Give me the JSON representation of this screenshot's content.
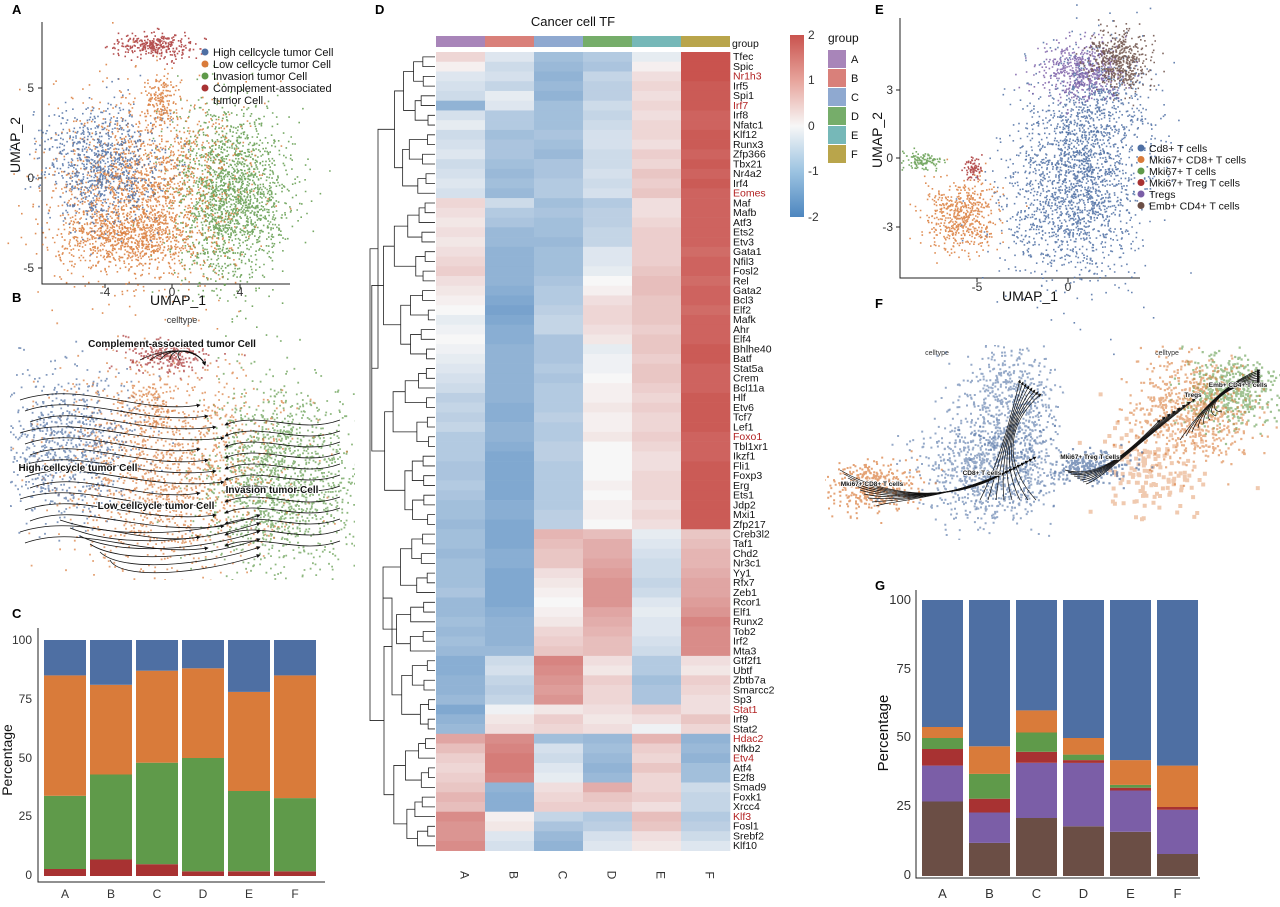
{
  "panels": {
    "A": {
      "label": "A",
      "xlabel": "UMAP_1",
      "ylabel": "UMAP_2",
      "xticks": [
        "-4",
        "0",
        "4"
      ],
      "yticks": [
        "5",
        "0",
        "-5"
      ],
      "legend": [
        {
          "name": "High cellcycle tumor Cell",
          "color": "#4e6fa3"
        },
        {
          "name": "Low cellcycle tumor Cell",
          "color": "#d97b3a"
        },
        {
          "name": "Invasion tumor Cell",
          "color": "#5f9a4a"
        },
        {
          "name": "Complement-associated",
          "name2": "tumor Cell",
          "color": "#a83232"
        }
      ]
    },
    "B": {
      "label": "B",
      "title": "celltype",
      "annotations": [
        "Complement-associated tumor Cell",
        "High cellcycle tumor Cell",
        "Invasion tumor Cell",
        "Low cellcycle tumor Cell"
      ]
    },
    "C": {
      "label": "C",
      "ylabel": "Percentage",
      "yticks": [
        "100",
        "75",
        "50",
        "25",
        "0"
      ]
    },
    "D": {
      "label": "D",
      "title": "Cancer cell TF",
      "group_label": "group",
      "legend_title": "group",
      "scale_ticks": [
        "2",
        "1",
        "0",
        "-1",
        "-2"
      ],
      "highlighted_color": "#b22222"
    },
    "E": {
      "label": "E",
      "xlabel": "UMAP_1",
      "ylabel": "UMAP_2",
      "xticks": [
        "-5",
        "0"
      ],
      "yticks": [
        "3",
        "0",
        "-3"
      ],
      "legend": [
        {
          "name": "Cd8+ T cells",
          "color": "#4e6fa3"
        },
        {
          "name": "Mki67+ CD8+ T cells",
          "color": "#d97b3a"
        },
        {
          "name": "Mki67+ T cells",
          "color": "#5f9a4a"
        },
        {
          "name": "Mki67+ Treg T cells",
          "color": "#a83232"
        },
        {
          "name": "Tregs",
          "color": "#7b5ea7"
        },
        {
          "name": "Emb+ CD4+ T cells",
          "color": "#6b4e45"
        }
      ]
    },
    "F": {
      "label": "F",
      "left_title": "celltype",
      "right_title": "celltype",
      "left_annotations": [
        "Mki67+ CD8+ T cells",
        "CD8+ T cells"
      ],
      "right_annotations": [
        "Tregs",
        "Emb+ CD4+ T cells",
        "Mki67+ Treg T cells"
      ]
    },
    "G": {
      "label": "G",
      "ylabel": "Percentage",
      "yticks": [
        "100",
        "75",
        "50",
        "25",
        "0"
      ]
    }
  },
  "chart_data": [
    {
      "id": "C",
      "type": "bar",
      "stacked": true,
      "categories": [
        "A",
        "B",
        "C",
        "D",
        "E",
        "F"
      ],
      "ylim": [
        0,
        100
      ],
      "ylabel": "Percentage",
      "series": [
        {
          "color": "#a83232",
          "values": [
            3,
            7,
            5,
            2,
            2,
            2
          ]
        },
        {
          "color": "#5f9a4a",
          "values": [
            31,
            36,
            43,
            48,
            34,
            31
          ]
        },
        {
          "color": "#d97b3a",
          "values": [
            51,
            38,
            39,
            38,
            42,
            52
          ]
        },
        {
          "color": "#4e6fa3",
          "values": [
            15,
            19,
            13,
            12,
            22,
            15
          ]
        }
      ]
    },
    {
      "id": "G",
      "type": "bar",
      "stacked": true,
      "categories": [
        "A",
        "B",
        "C",
        "D",
        "E",
        "F"
      ],
      "ylim": [
        0,
        100
      ],
      "ylabel": "Percentage",
      "series": [
        {
          "color": "#6b4e45",
          "values": [
            27,
            12,
            21,
            18,
            16,
            8
          ]
        },
        {
          "color": "#7b5ea7",
          "values": [
            13,
            11,
            20,
            23,
            15,
            16
          ]
        },
        {
          "color": "#a83232",
          "values": [
            6,
            5,
            4,
            1,
            1,
            1
          ]
        },
        {
          "color": "#5f9a4a",
          "values": [
            4,
            9,
            7,
            2,
            1,
            0
          ]
        },
        {
          "color": "#d97b3a",
          "values": [
            4,
            10,
            8,
            6,
            9,
            15
          ]
        },
        {
          "color": "#4e6fa3",
          "values": [
            46,
            53,
            40,
            50,
            58,
            60
          ]
        }
      ]
    },
    {
      "id": "D",
      "type": "heatmap",
      "title": "Cancer cell TF",
      "columns": [
        "A",
        "B",
        "C",
        "D",
        "E",
        "F"
      ],
      "group_colors": [
        "#a885b9",
        "#d9807a",
        "#8fa9d0",
        "#76ad6a",
        "#76b8b8",
        "#b9a54b"
      ],
      "range": [
        -2,
        2
      ],
      "rows": [
        "Tfec",
        "Spic",
        "Nr1h3",
        "Irf5",
        "Spi1",
        "Irf7",
        "Irf8",
        "Nfatc1",
        "Klf12",
        "Runx3",
        "Zfp366",
        "Tbx21",
        "Nr4a2",
        "Irf4",
        "Eomes",
        "Maf",
        "Mafb",
        "Atf3",
        "Ets2",
        "Etv3",
        "Gata1",
        "Nfil3",
        "Fosl2",
        "Rel",
        "Gata2",
        "Bcl3",
        "Elf2",
        "Mafk",
        "Ahr",
        "Elf4",
        "Bhlhe40",
        "Batf",
        "Stat5a",
        "Crem",
        "Bcl11a",
        "Hlf",
        "Etv6",
        "Tcf7",
        "Lef1",
        "Foxo1",
        "Tbl1xr1",
        "Ikzf1",
        "Fli1",
        "Foxp3",
        "Erg",
        "Ets1",
        "Jdp2",
        "Mxi1",
        "Zfp217",
        "Creb3l2",
        "Taf1",
        "Chd2",
        "Nr3c1",
        "Yy1",
        "Rfx7",
        "Zeb1",
        "Rcor1",
        "Elf1",
        "Runx2",
        "Tob2",
        "Irf2",
        "Mta3",
        "Gtf2f1",
        "Ubtf",
        "Zbtb7a",
        "Smarcc2",
        "Sp3",
        "Stat1",
        "Irf9",
        "Stat2",
        "Hdac2",
        "Nfkb2",
        "Etv4",
        "Atf4",
        "E2f8",
        "Smad9",
        "Foxk1",
        "Xrcc4",
        "Klf3",
        "Fosl1",
        "Srebf2",
        "Klf10"
      ],
      "highlighted": [
        "Nr1h3",
        "Irf7",
        "Eomes",
        "Foxo1",
        "Stat1",
        "Hdac2",
        "Etv4",
        "Klf3"
      ],
      "values": [
        [
          0.4,
          -0.3,
          -1.0,
          -0.8,
          -0.2,
          2.0
        ],
        [
          0.1,
          -0.5,
          -1.1,
          -0.9,
          0.1,
          2.0
        ],
        [
          -0.3,
          -0.4,
          -1.2,
          -0.6,
          0.3,
          2.0
        ],
        [
          -0.4,
          -0.6,
          -1.1,
          -0.7,
          0.4,
          1.9
        ],
        [
          -0.5,
          -0.2,
          -1.2,
          -0.7,
          0.3,
          1.9
        ],
        [
          -1.2,
          -0.3,
          -1.0,
          -0.5,
          0.4,
          1.9
        ],
        [
          -0.4,
          -0.8,
          -1.0,
          -0.6,
          0.3,
          1.8
        ],
        [
          -0.2,
          -0.8,
          -1.0,
          -0.5,
          0.4,
          1.8
        ],
        [
          -0.5,
          -1.0,
          -0.9,
          -0.4,
          0.4,
          1.9
        ],
        [
          -0.4,
          -0.9,
          -1.0,
          -0.4,
          0.3,
          1.9
        ],
        [
          -0.3,
          -0.9,
          -1.1,
          -0.5,
          0.5,
          1.8
        ],
        [
          -0.5,
          -1.0,
          -0.9,
          -0.5,
          0.4,
          1.9
        ],
        [
          -0.4,
          -1.1,
          -0.9,
          -0.4,
          0.6,
          1.8
        ],
        [
          -0.3,
          -1.0,
          -0.8,
          -0.5,
          0.5,
          1.9
        ],
        [
          -0.4,
          -1.1,
          -0.8,
          -0.4,
          0.6,
          1.8
        ],
        [
          0.4,
          -0.5,
          -1.0,
          -0.8,
          0.3,
          1.8
        ],
        [
          0.3,
          -0.8,
          -0.9,
          -0.7,
          0.3,
          1.8
        ],
        [
          0.2,
          -0.9,
          -1.0,
          -0.7,
          0.4,
          1.8
        ],
        [
          0.3,
          -1.1,
          -1.0,
          -0.6,
          0.5,
          1.8
        ],
        [
          0.2,
          -1.1,
          -1.1,
          -0.6,
          0.5,
          1.8
        ],
        [
          0.3,
          -1.2,
          -1.0,
          -0.3,
          0.5,
          1.7
        ],
        [
          0.4,
          -1.2,
          -1.0,
          -0.3,
          0.5,
          1.8
        ],
        [
          0.5,
          -1.2,
          -1.0,
          -0.2,
          0.6,
          1.8
        ],
        [
          0.3,
          -1.2,
          -0.9,
          0.0,
          0.7,
          1.7
        ],
        [
          0.2,
          -1.3,
          -0.8,
          0.1,
          0.7,
          1.8
        ],
        [
          0.1,
          -1.4,
          -0.8,
          0.3,
          0.6,
          1.8
        ],
        [
          0.0,
          -1.5,
          -0.7,
          0.4,
          0.6,
          1.7
        ],
        [
          -0.2,
          -1.4,
          -0.6,
          0.4,
          0.6,
          1.8
        ],
        [
          -0.1,
          -1.3,
          -0.6,
          0.3,
          0.5,
          1.8
        ],
        [
          0.0,
          -1.3,
          -0.9,
          0.2,
          0.6,
          1.8
        ],
        [
          -0.1,
          -1.2,
          -0.9,
          -0.2,
          0.6,
          1.9
        ],
        [
          -0.2,
          -1.2,
          -0.9,
          -0.1,
          0.5,
          1.9
        ],
        [
          -0.3,
          -1.2,
          -0.8,
          -0.1,
          0.6,
          1.8
        ],
        [
          -0.4,
          -1.2,
          -0.9,
          0.0,
          0.6,
          1.8
        ],
        [
          -0.5,
          -1.2,
          -0.8,
          0.1,
          0.5,
          1.8
        ],
        [
          -0.7,
          -1.2,
          -0.8,
          0.1,
          0.4,
          1.9
        ],
        [
          -0.6,
          -1.3,
          -0.8,
          0.2,
          0.5,
          1.9
        ],
        [
          -0.7,
          -1.3,
          -0.7,
          0.1,
          0.4,
          1.9
        ],
        [
          -0.6,
          -1.2,
          -0.8,
          0.1,
          0.4,
          1.9
        ],
        [
          -0.8,
          -1.2,
          -0.8,
          0.2,
          0.5,
          1.8
        ],
        [
          -0.8,
          -1.3,
          -0.7,
          0.0,
          0.4,
          1.8
        ],
        [
          -0.8,
          -1.4,
          -0.7,
          0.0,
          0.3,
          1.8
        ],
        [
          -0.9,
          -1.4,
          -0.8,
          0.0,
          0.3,
          1.9
        ],
        [
          -0.9,
          -1.4,
          -0.8,
          0.0,
          0.4,
          1.9
        ],
        [
          -0.8,
          -1.4,
          -0.8,
          0.1,
          0.4,
          1.9
        ],
        [
          -0.9,
          -1.4,
          -0.8,
          0.0,
          0.4,
          1.9
        ],
        [
          -1.0,
          -1.3,
          -0.8,
          0.1,
          0.3,
          1.9
        ],
        [
          -1.0,
          -1.3,
          -0.7,
          0.1,
          0.4,
          1.9
        ],
        [
          -1.1,
          -1.4,
          -0.7,
          0.0,
          0.3,
          1.9
        ],
        [
          -1.0,
          -1.4,
          0.8,
          0.7,
          -0.2,
          0.6
        ],
        [
          -1.0,
          -1.4,
          0.7,
          0.9,
          -0.3,
          0.7
        ],
        [
          -1.1,
          -1.3,
          0.6,
          0.9,
          -0.4,
          0.8
        ],
        [
          -1.0,
          -1.3,
          0.6,
          1.0,
          -0.5,
          0.8
        ],
        [
          -1.0,
          -1.4,
          0.3,
          1.1,
          -0.5,
          0.9
        ],
        [
          -1.0,
          -1.4,
          0.2,
          1.2,
          -0.6,
          1.0
        ],
        [
          -0.9,
          -1.4,
          0.1,
          1.2,
          -0.5,
          1.0
        ],
        [
          -1.1,
          -1.4,
          0.0,
          1.2,
          -0.3,
          1.1
        ],
        [
          -1.1,
          -1.3,
          0.1,
          1.0,
          -0.2,
          1.2
        ],
        [
          -1.0,
          -1.2,
          0.2,
          0.9,
          -0.3,
          1.4
        ],
        [
          -1.1,
          -1.2,
          0.4,
          0.8,
          -0.3,
          1.3
        ],
        [
          -1.0,
          -1.2,
          0.5,
          0.7,
          -0.4,
          1.3
        ],
        [
          -1.1,
          -1.1,
          0.6,
          0.7,
          -0.5,
          1.3
        ],
        [
          -1.3,
          -0.5,
          1.4,
          0.3,
          -0.8,
          0.3
        ],
        [
          -1.3,
          -0.4,
          1.3,
          0.2,
          -0.8,
          0.2
        ],
        [
          -1.2,
          -0.6,
          1.2,
          0.5,
          -1.0,
          0.5
        ],
        [
          -1.2,
          -0.7,
          1.1,
          0.4,
          -0.9,
          0.4
        ],
        [
          -1.1,
          -0.6,
          1.2,
          0.4,
          -0.9,
          0.3
        ],
        [
          -1.4,
          -0.1,
          0.2,
          0.3,
          0.5,
          0.3
        ],
        [
          -1.2,
          0.2,
          0.5,
          0.2,
          0.3,
          0.6
        ],
        [
          -1.1,
          0.3,
          0.4,
          0.3,
          -0.1,
          0.4
        ],
        [
          1.0,
          1.3,
          -1.0,
          -1.1,
          0.8,
          -1.2
        ],
        [
          0.7,
          1.4,
          -0.4,
          -1.0,
          0.5,
          -1.1
        ],
        [
          0.5,
          1.5,
          -0.5,
          -1.1,
          0.4,
          -1.2
        ],
        [
          0.4,
          1.5,
          -0.3,
          -1.2,
          0.6,
          -1.0
        ],
        [
          0.5,
          1.4,
          -0.2,
          -1.1,
          0.4,
          -1.0
        ],
        [
          0.6,
          -1.2,
          0.3,
          0.9,
          0.4,
          -0.5
        ],
        [
          0.8,
          -1.3,
          0.4,
          0.6,
          0.5,
          -0.6
        ],
        [
          0.7,
          -1.3,
          0.5,
          0.5,
          0.3,
          -0.6
        ],
        [
          1.3,
          0.1,
          -0.6,
          -0.8,
          0.7,
          -0.8
        ],
        [
          1.2,
          0.2,
          -0.9,
          -0.7,
          0.6,
          -0.7
        ],
        [
          1.2,
          -0.3,
          -1.1,
          -0.4,
          0.3,
          -0.5
        ],
        [
          1.3,
          -0.4,
          -1.2,
          -0.3,
          0.2,
          -0.3
        ]
      ]
    }
  ]
}
